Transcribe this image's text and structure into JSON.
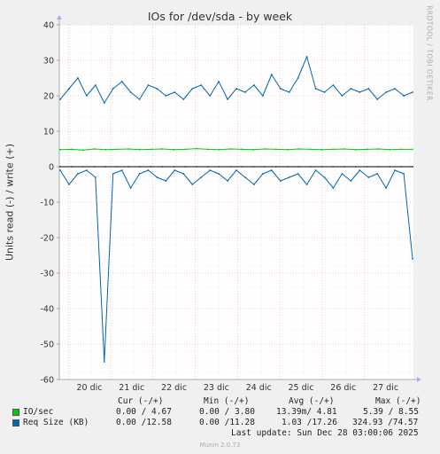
{
  "title": "IOs for /dev/sda - by week",
  "ylabel": "Units read (-) / write (+)",
  "rrdtool": "RRDTOOL / TOBI OETIKER",
  "footer": "Munin 2.0.73",
  "last_update": "Last update: Sun Dec 28 03:00:06 2025",
  "legend": {
    "headers": [
      "Cur (-/+)",
      "Min (-/+)",
      "Avg (-/+)",
      "Max (-/+)"
    ],
    "rows": [
      {
        "name": "IO/sec",
        "color": "#00cc00",
        "cur": "0.00 / 4.67",
        "min": "0.00 / 3.80",
        "avg": "13.39m/ 4.81",
        "max": "5.39 / 8.55"
      },
      {
        "name": "Req Size (KB)",
        "color": "#0066b3",
        "cur": "0.00 /12.58",
        "min": "0.00 /11.28",
        "avg": "1.03 /17.26",
        "max": "324.93 /74.57"
      }
    ]
  },
  "chart_data": {
    "type": "line",
    "title": "IOs for /dev/sda - by week",
    "ylabel": "Units read (-) / write (+)",
    "ylim": [
      -60,
      40
    ],
    "yticks": [
      40,
      30,
      20,
      10,
      0,
      -10,
      -20,
      -30,
      -40,
      -50,
      -60
    ],
    "xticks": [
      "20 dic",
      "21 dic",
      "22 dic",
      "23 dic",
      "24 dic",
      "25 dic",
      "26 dic",
      "27 dic"
    ],
    "grid": true,
    "series": [
      {
        "name": "IO/sec",
        "color": "#00cc00",
        "write_values": [
          4.8,
          4.9,
          4.7,
          5.0,
          4.8,
          4.9,
          5.0,
          4.8,
          4.9,
          5.0,
          4.8,
          4.9,
          5.1,
          4.9,
          4.8,
          5.0,
          4.9,
          4.8,
          5.0,
          4.9,
          4.8,
          5.0,
          4.9,
          4.8,
          4.9,
          5.0,
          4.8,
          4.9,
          5.0,
          4.8,
          4.9,
          4.9
        ],
        "read_values": [
          0,
          0,
          0,
          0,
          0,
          0,
          0,
          0,
          0,
          0,
          0,
          0,
          0,
          0,
          0,
          0,
          0,
          0,
          0,
          0,
          0,
          0,
          0,
          0,
          0,
          0,
          0,
          0,
          0,
          0,
          0,
          0
        ]
      },
      {
        "name": "Req Size (KB)",
        "color": "#0066b3",
        "write_values": [
          19,
          22,
          25,
          20,
          23,
          18,
          22,
          24,
          21,
          19,
          23,
          22,
          20,
          21,
          19,
          22,
          23,
          20,
          24,
          19,
          22,
          21,
          23,
          20,
          26,
          22,
          21,
          25,
          31,
          22,
          21,
          23,
          20,
          22,
          21,
          22,
          19,
          21,
          22,
          20,
          21
        ],
        "read_values": [
          -1,
          -5,
          -2,
          -1,
          -3,
          -55,
          -2,
          -1,
          -6,
          -2,
          -1,
          -3,
          -4,
          -1,
          -2,
          -5,
          -3,
          -1,
          -2,
          -4,
          -1,
          -3,
          -5,
          -2,
          -1,
          -4,
          -3,
          -2,
          -5,
          -1,
          -3,
          -6,
          -2,
          -4,
          -1,
          -3,
          -2,
          -6,
          -1,
          -2,
          -26
        ]
      }
    ]
  }
}
